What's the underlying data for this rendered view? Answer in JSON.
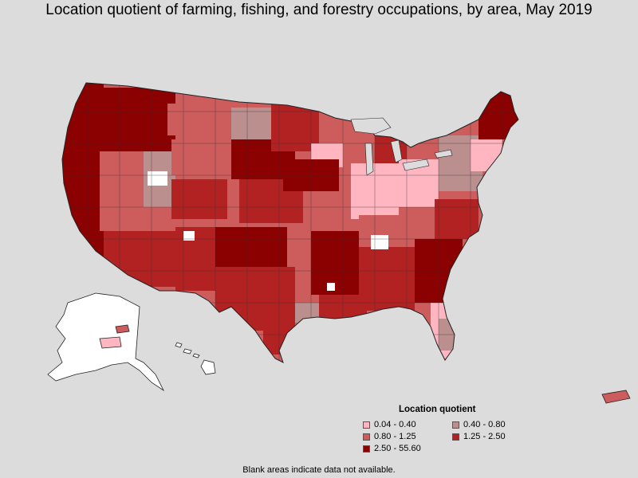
{
  "title": "Location quotient of farming, fishing, and forestry occupations, by area, May 2019",
  "legend": {
    "title": "Location quotient",
    "items": [
      {
        "label": "0.04 - 0.40",
        "color": "#ffb6c1"
      },
      {
        "label": "0.40 - 0.80",
        "color": "#bc8f8f"
      },
      {
        "label": "0.80 - 1.25",
        "color": "#cd5c5c"
      },
      {
        "label": "1.25 - 2.50",
        "color": "#b22222"
      },
      {
        "label": "2.50 - 55.60",
        "color": "#8b0000"
      }
    ]
  },
  "footnote": "Blank areas indicate data not available.",
  "colors": {
    "background": "#dcdcdc",
    "no_data": "#ffffff",
    "border": "#333333"
  }
}
